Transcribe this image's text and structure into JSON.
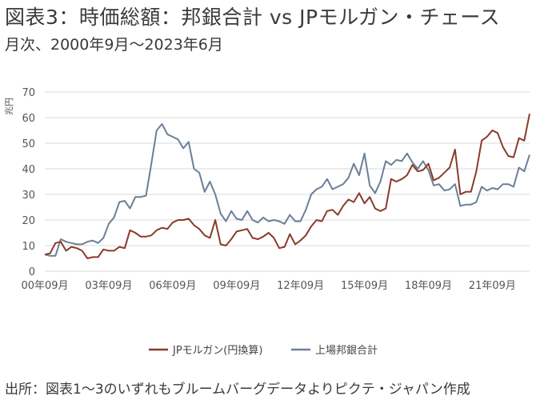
{
  "title": "図表3：時価総額：邦銀合計 vs JPモルガン・チェース",
  "subtitle": "月次、2000年9月～2023年6月",
  "source": "出所：図表1～3のいずれもブルームバーグデータよりピクテ・ジャパン作成",
  "chart_data": {
    "type": "line",
    "title": "",
    "ylabel": "兆円",
    "xlabel": "",
    "ylim": [
      0,
      70
    ],
    "yticks": [
      0,
      10,
      20,
      30,
      40,
      50,
      60,
      70
    ],
    "x_tick_labels": [
      "00年09月",
      "03年09月",
      "06年09月",
      "09年09月",
      "12年09月",
      "15年09月",
      "18年09月",
      "21年09月"
    ],
    "x_tick_dates": [
      "2000-09",
      "2003-09",
      "2006-09",
      "2009-09",
      "2012-09",
      "2015-09",
      "2018-09",
      "2021-09"
    ],
    "x_range": [
      "2000-09",
      "2023-06"
    ],
    "grid": "horizontal",
    "legend_position": "bottom",
    "series": [
      {
        "name": "JPモルガン(円換算)",
        "color": "#8b3a2b",
        "points": [
          [
            "2000-09",
            6.5
          ],
          [
            "2000-12",
            7
          ],
          [
            "2001-03",
            11
          ],
          [
            "2001-06",
            11.5
          ],
          [
            "2001-09",
            8
          ],
          [
            "2001-12",
            9.5
          ],
          [
            "2002-03",
            9
          ],
          [
            "2002-06",
            8
          ],
          [
            "2002-09",
            5
          ],
          [
            "2002-12",
            5.5
          ],
          [
            "2003-03",
            5.5
          ],
          [
            "2003-06",
            8.5
          ],
          [
            "2003-09",
            8
          ],
          [
            "2003-12",
            8
          ],
          [
            "2004-03",
            9.5
          ],
          [
            "2004-06",
            9
          ],
          [
            "2004-09",
            16
          ],
          [
            "2004-12",
            15
          ],
          [
            "2005-03",
            13.5
          ],
          [
            "2005-06",
            13.5
          ],
          [
            "2005-09",
            14
          ],
          [
            "2005-12",
            16
          ],
          [
            "2006-03",
            17
          ],
          [
            "2006-06",
            16.5
          ],
          [
            "2006-09",
            19
          ],
          [
            "2006-12",
            20
          ],
          [
            "2007-03",
            20
          ],
          [
            "2007-06",
            20.5
          ],
          [
            "2007-09",
            18
          ],
          [
            "2007-12",
            16.5
          ],
          [
            "2008-03",
            14
          ],
          [
            "2008-06",
            13
          ],
          [
            "2008-09",
            20
          ],
          [
            "2008-12",
            10.5
          ],
          [
            "2009-03",
            10
          ],
          [
            "2009-06",
            12.5
          ],
          [
            "2009-09",
            15.5
          ],
          [
            "2009-12",
            16
          ],
          [
            "2010-03",
            16.5
          ],
          [
            "2010-06",
            13
          ],
          [
            "2010-09",
            12.5
          ],
          [
            "2010-12",
            13.5
          ],
          [
            "2011-03",
            15
          ],
          [
            "2011-06",
            13
          ],
          [
            "2011-09",
            9
          ],
          [
            "2011-12",
            9.5
          ],
          [
            "2012-03",
            14.5
          ],
          [
            "2012-06",
            10.5
          ],
          [
            "2012-09",
            12
          ],
          [
            "2012-12",
            14
          ],
          [
            "2013-03",
            17.5
          ],
          [
            "2013-06",
            20
          ],
          [
            "2013-09",
            19.5
          ],
          [
            "2013-12",
            23.5
          ],
          [
            "2014-03",
            24
          ],
          [
            "2014-06",
            22
          ],
          [
            "2014-09",
            25.5
          ],
          [
            "2014-12",
            28
          ],
          [
            "2015-03",
            27
          ],
          [
            "2015-06",
            30.5
          ],
          [
            "2015-09",
            26.5
          ],
          [
            "2015-12",
            29
          ],
          [
            "2016-03",
            24.5
          ],
          [
            "2016-06",
            23.5
          ],
          [
            "2016-09",
            24.5
          ],
          [
            "2016-12",
            36
          ],
          [
            "2017-03",
            35
          ],
          [
            "2017-06",
            36
          ],
          [
            "2017-09",
            37.5
          ],
          [
            "2017-12",
            41.5
          ],
          [
            "2018-03",
            39
          ],
          [
            "2018-06",
            39.5
          ],
          [
            "2018-09",
            42
          ],
          [
            "2018-12",
            35.5
          ],
          [
            "2019-03",
            36.5
          ],
          [
            "2019-06",
            38.5
          ],
          [
            "2019-09",
            40.5
          ],
          [
            "2019-12",
            47.5
          ],
          [
            "2020-03",
            30
          ],
          [
            "2020-06",
            31
          ],
          [
            "2020-09",
            31
          ],
          [
            "2020-12",
            39
          ],
          [
            "2021-03",
            51
          ],
          [
            "2021-06",
            52.5
          ],
          [
            "2021-09",
            55
          ],
          [
            "2021-12",
            54
          ],
          [
            "2022-03",
            48.5
          ],
          [
            "2022-06",
            45
          ],
          [
            "2022-09",
            44.5
          ],
          [
            "2022-12",
            52
          ],
          [
            "2023-03",
            51
          ],
          [
            "2023-06",
            61.5
          ]
        ]
      },
      {
        "name": "上場邦銀合計",
        "color": "#6b7f97",
        "points": [
          [
            "2000-09",
            6.5
          ],
          [
            "2000-12",
            6
          ],
          [
            "2001-03",
            6
          ],
          [
            "2001-06",
            12.5
          ],
          [
            "2001-09",
            11.5
          ],
          [
            "2001-12",
            11
          ],
          [
            "2002-03",
            10.5
          ],
          [
            "2002-06",
            10.5
          ],
          [
            "2002-09",
            11.5
          ],
          [
            "2002-12",
            12
          ],
          [
            "2003-03",
            11
          ],
          [
            "2003-06",
            13
          ],
          [
            "2003-09",
            18.5
          ],
          [
            "2003-12",
            21
          ],
          [
            "2004-03",
            27
          ],
          [
            "2004-06",
            27.5
          ],
          [
            "2004-09",
            24.5
          ],
          [
            "2004-12",
            29
          ],
          [
            "2005-03",
            29
          ],
          [
            "2005-06",
            29.5
          ],
          [
            "2005-09",
            42
          ],
          [
            "2005-12",
            55
          ],
          [
            "2006-03",
            57.5
          ],
          [
            "2006-06",
            53.5
          ],
          [
            "2006-09",
            52.5
          ],
          [
            "2006-12",
            51.5
          ],
          [
            "2007-03",
            48
          ],
          [
            "2007-06",
            50.5
          ],
          [
            "2007-09",
            40
          ],
          [
            "2007-12",
            38.5
          ],
          [
            "2008-03",
            31
          ],
          [
            "2008-06",
            35
          ],
          [
            "2008-09",
            30
          ],
          [
            "2008-12",
            22.5
          ],
          [
            "2009-03",
            19.5
          ],
          [
            "2009-06",
            23.5
          ],
          [
            "2009-09",
            20.5
          ],
          [
            "2009-12",
            20
          ],
          [
            "2010-03",
            23.5
          ],
          [
            "2010-06",
            20
          ],
          [
            "2010-09",
            19
          ],
          [
            "2010-12",
            21
          ],
          [
            "2011-03",
            19.5
          ],
          [
            "2011-06",
            20
          ],
          [
            "2011-09",
            19.5
          ],
          [
            "2011-12",
            18.5
          ],
          [
            "2012-03",
            22
          ],
          [
            "2012-06",
            19.5
          ],
          [
            "2012-09",
            19.5
          ],
          [
            "2012-12",
            24
          ],
          [
            "2013-03",
            30
          ],
          [
            "2013-06",
            32
          ],
          [
            "2013-09",
            33
          ],
          [
            "2013-12",
            36
          ],
          [
            "2014-03",
            32
          ],
          [
            "2014-06",
            33
          ],
          [
            "2014-09",
            34
          ],
          [
            "2014-12",
            36.5
          ],
          [
            "2015-03",
            42
          ],
          [
            "2015-06",
            37.5
          ],
          [
            "2015-09",
            46
          ],
          [
            "2015-12",
            33.5
          ],
          [
            "2016-03",
            30.5
          ],
          [
            "2016-06",
            35
          ],
          [
            "2016-09",
            43
          ],
          [
            "2016-12",
            41.5
          ],
          [
            "2017-03",
            43.5
          ],
          [
            "2017-06",
            43
          ],
          [
            "2017-09",
            46
          ],
          [
            "2017-12",
            42.5
          ],
          [
            "2018-03",
            40
          ],
          [
            "2018-06",
            43
          ],
          [
            "2018-09",
            39.5
          ],
          [
            "2018-12",
            33.5
          ],
          [
            "2019-03",
            34
          ],
          [
            "2019-06",
            31.5
          ],
          [
            "2019-09",
            32
          ],
          [
            "2019-12",
            34
          ],
          [
            "2020-03",
            25.5
          ],
          [
            "2020-06",
            26
          ],
          [
            "2020-09",
            26
          ],
          [
            "2020-12",
            27
          ],
          [
            "2021-03",
            33
          ],
          [
            "2021-06",
            31.5
          ],
          [
            "2021-09",
            32.5
          ],
          [
            "2021-12",
            32
          ],
          [
            "2022-03",
            34
          ],
          [
            "2022-06",
            34
          ],
          [
            "2022-09",
            33
          ],
          [
            "2022-12",
            40.5
          ],
          [
            "2023-03",
            39
          ],
          [
            "2023-06",
            45.5
          ]
        ]
      }
    ]
  }
}
